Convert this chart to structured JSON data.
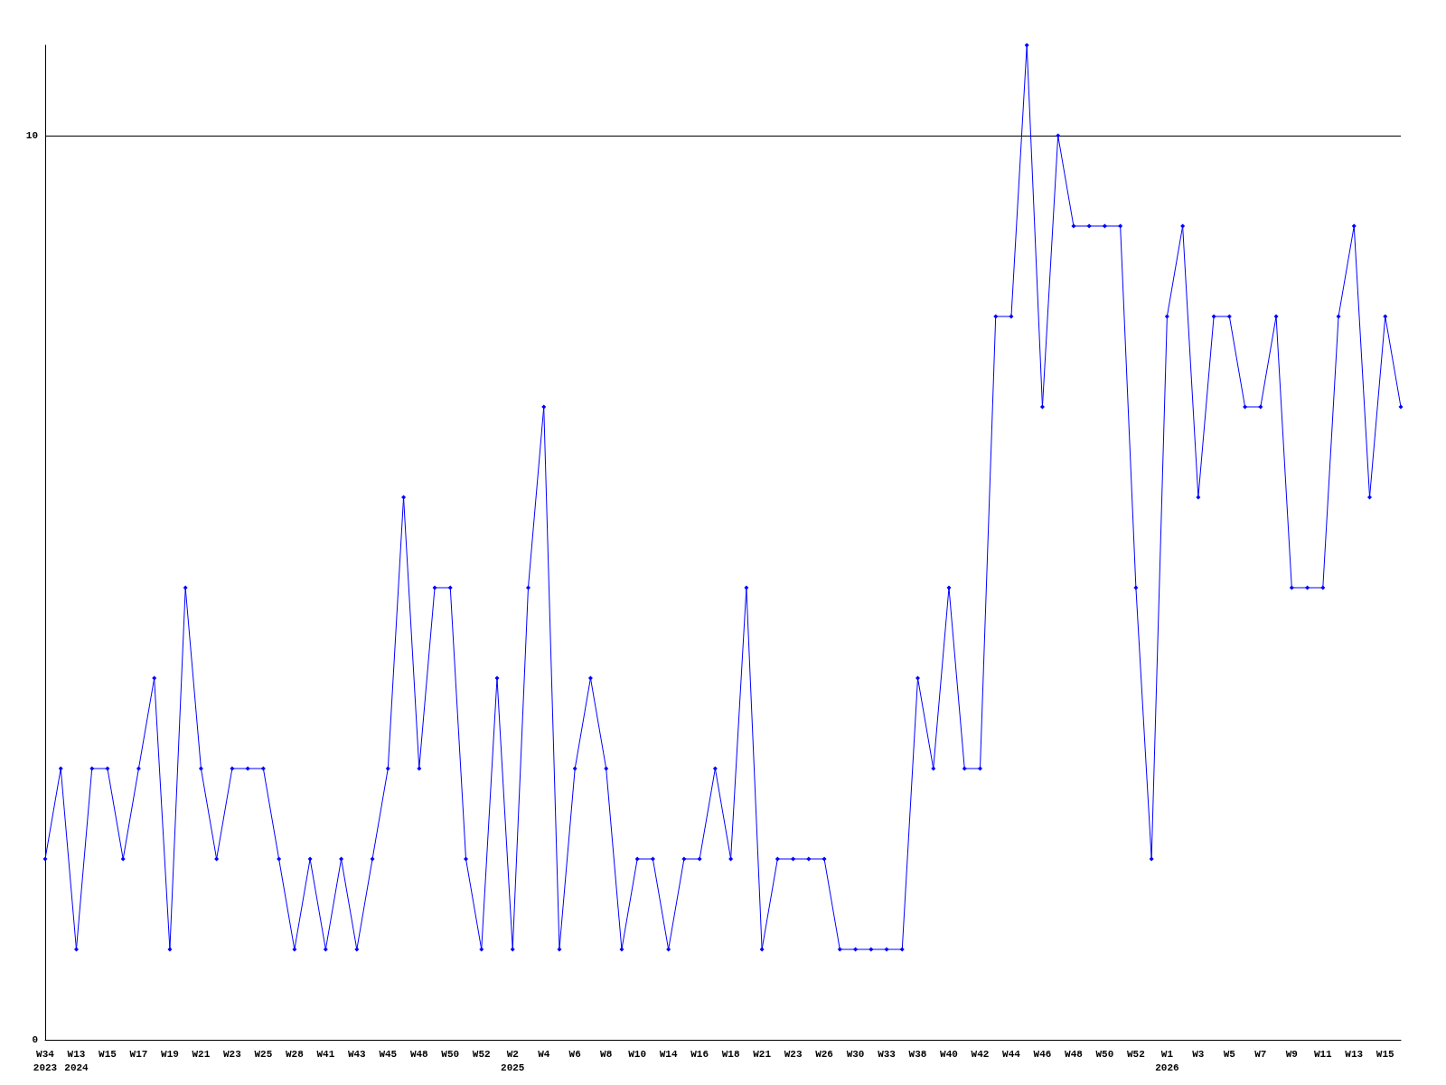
{
  "chart_data": {
    "type": "line",
    "categories": [
      "W34\n2023",
      null,
      "W13\n2024",
      null,
      "W15",
      null,
      "W17",
      null,
      "W19",
      null,
      "W21",
      null,
      "W23",
      null,
      "W25",
      null,
      "W28",
      null,
      "W41",
      null,
      "W43",
      null,
      "W45",
      null,
      "W48",
      null,
      "W50",
      null,
      "W52",
      null,
      "W2\n2025",
      null,
      "W4",
      null,
      "W6",
      null,
      "W8",
      null,
      "W10",
      null,
      "W14",
      null,
      "W16",
      null,
      "W18",
      null,
      "W21",
      null,
      "W23",
      null,
      "W26",
      null,
      "W30",
      null,
      "W33",
      null,
      "W38",
      null,
      "W40",
      null,
      "W42",
      null,
      "W44",
      null,
      "W46",
      null,
      "W48",
      null,
      "W50",
      null,
      "W52",
      null,
      "W1\n2026",
      null,
      "W3",
      null,
      "W5",
      null,
      "W7",
      null,
      "W9",
      null,
      "W11",
      null,
      "W13",
      null,
      "W15",
      null
    ],
    "series": [
      {
        "color": "#0000ff",
        "values": [
          2,
          3,
          1,
          3,
          3,
          2,
          3,
          4,
          1,
          5,
          3,
          2,
          3,
          3,
          3,
          2,
          1,
          2,
          1,
          2,
          1,
          2,
          3,
          6,
          3,
          5,
          5,
          2,
          1,
          4,
          1,
          5,
          7,
          1,
          3,
          4,
          3,
          1,
          2,
          2,
          1,
          2,
          2,
          3,
          2,
          5,
          1,
          2,
          2,
          2,
          2,
          1,
          1,
          1,
          1,
          1,
          4,
          3,
          5,
          3,
          3,
          8,
          8,
          11,
          7,
          10,
          9,
          9,
          9,
          9,
          5,
          2,
          8,
          9,
          6,
          8,
          8,
          7,
          7,
          8,
          5,
          5,
          5,
          8,
          9,
          6,
          8,
          7
        ]
      }
    ],
    "ylim": [
      0,
      11
    ],
    "yticks": [
      0,
      10
    ],
    "grid": "y",
    "marker": "diamond",
    "line_style": "solid"
  }
}
